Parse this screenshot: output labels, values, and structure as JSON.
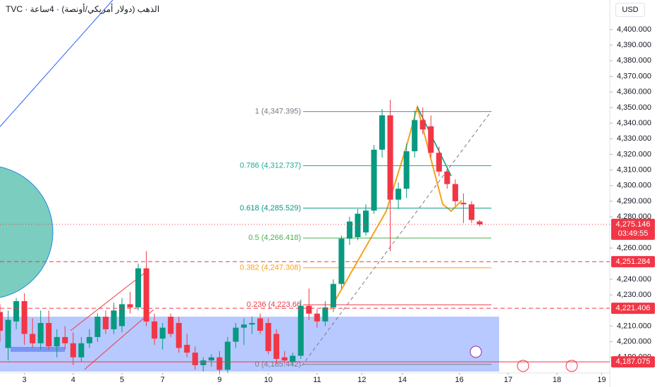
{
  "chart_data": {
    "type": "candlestick",
    "title": "TVC · الذهب (دولار أمريكي/أونصة) · 4ساعة",
    "currency": "USD",
    "up_color": "#089981",
    "down_color": "#f23645",
    "x": [
      0,
      1,
      2,
      3,
      4,
      5,
      6,
      7,
      8,
      9,
      10,
      11,
      12,
      13,
      14,
      15,
      16,
      17,
      18,
      19,
      20,
      21,
      22,
      23,
      24,
      25,
      26,
      27,
      28,
      29,
      30,
      31,
      32,
      33,
      34,
      35,
      36,
      37,
      38,
      39,
      40,
      41,
      42,
      43,
      44,
      45,
      46,
      47,
      48,
      49,
      50,
      51,
      52,
      53,
      54,
      55,
      56,
      57,
      58,
      59
    ],
    "open": [
      4219,
      4196,
      4213,
      4226,
      4205,
      4199,
      4212,
      4197,
      4203,
      4199,
      4190,
      4199,
      4203,
      4216,
      4208,
      4210,
      4224,
      4222,
      4247,
      4213,
      4202,
      4216,
      4212,
      4198,
      4193,
      4185,
      4188,
      4190,
      4182,
      4200,
      4209,
      4211,
      4215,
      4212,
      4205,
      4190,
      4187,
      4191,
      4223,
      4218,
      4213,
      4222,
      4237,
      4266,
      4267,
      4270,
      4284,
      4323,
      4345,
      4291,
      4298,
      4322,
      4342,
      4338,
      4321,
      4309,
      4301,
      4289,
      4288,
      4277
    ],
    "high": [
      4224,
      4220,
      4228,
      4231,
      4215,
      4220,
      4220,
      4208,
      4210,
      4206,
      4203,
      4208,
      4218,
      4220,
      4225,
      4228,
      4232,
      4250,
      4258,
      4218,
      4212,
      4218,
      4216,
      4205,
      4197,
      4190,
      4192,
      4194,
      4203,
      4212,
      4215,
      4216,
      4218,
      4215,
      4208,
      4194,
      4193,
      4227,
      4234,
      4221,
      4226,
      4240,
      4268,
      4280,
      4285,
      4288,
      4326,
      4349,
      4355,
      4302,
      4327,
      4348,
      4350,
      4345,
      4325,
      4312,
      4304,
      4295,
      4290,
      4278
    ],
    "low": [
      4200,
      4188,
      4208,
      4198,
      4196,
      4195,
      4195,
      4190,
      4195,
      4185,
      4187,
      4196,
      4200,
      4205,
      4205,
      4206,
      4218,
      4220,
      4210,
      4198,
      4195,
      4203,
      4193,
      4190,
      4182,
      4181,
      4184,
      4180,
      4180,
      4196,
      4198,
      4205,
      4205,
      4192,
      4186,
      4186,
      4185,
      4189,
      4214,
      4209,
      4210,
      4219,
      4234,
      4262,
      4265,
      4268,
      4282,
      4318,
      4258,
      4285,
      4292,
      4318,
      4333,
      4318,
      4306,
      4298,
      4287,
      4276,
      4276,
      4274
    ],
    "close": [
      4207,
      4214,
      4226,
      4205,
      4199,
      4212,
      4197,
      4203,
      4199,
      4190,
      4199,
      4203,
      4216,
      4208,
      4220,
      4224,
      4222,
      4247,
      4213,
      4202,
      4209,
      4205,
      4196,
      4193,
      4185,
      4188,
      4190,
      4182,
      4200,
      4209,
      4211,
      4212,
      4207,
      4194,
      4189,
      4188,
      4191,
      4223,
      4218,
      4213,
      4222,
      4237,
      4266,
      4277,
      4282,
      4284,
      4323,
      4345,
      4291,
      4298,
      4322,
      4342,
      4336,
      4321,
      4309,
      4301,
      4290,
      4288,
      4278,
      4275.146
    ],
    "xlim": [
      0,
      75
    ],
    "xticks": [
      {
        "value": 3,
        "label": "3"
      },
      {
        "value": 9,
        "label": "4"
      },
      {
        "value": 15,
        "label": "5"
      },
      {
        "value": 20,
        "label": "7"
      },
      {
        "value": 27,
        "label": "9"
      },
      {
        "value": 33,
        "label": "10"
      },
      {
        "value": 39,
        "label": "11"
      },
      {
        "value": 44.5,
        "label": "12"
      },
      {
        "value": 49.5,
        "label": "14"
      },
      {
        "value": 56.5,
        "label": "16"
      },
      {
        "value": 62.5,
        "label": "17"
      },
      {
        "value": 68.5,
        "label": "18"
      },
      {
        "value": 74,
        "label": "19"
      }
    ],
    "ylim": [
      4180,
      4418.9
    ],
    "yticks": [
      {
        "value": 4400,
        "label": "4,400.000"
      },
      {
        "value": 4390,
        "label": "4,390.000"
      },
      {
        "value": 4380,
        "label": "4,380.000"
      },
      {
        "value": 4370,
        "label": "4,370.000"
      },
      {
        "value": 4360,
        "label": "4,360.000"
      },
      {
        "value": 4350,
        "label": "4,350.000"
      },
      {
        "value": 4340,
        "label": "4,340.000"
      },
      {
        "value": 4330,
        "label": "4,330.000"
      },
      {
        "value": 4320,
        "label": "4,320.000"
      },
      {
        "value": 4310,
        "label": "4,310.000"
      },
      {
        "value": 4300,
        "label": "4,300.000"
      },
      {
        "value": 4290,
        "label": "4,290.000"
      },
      {
        "value": 4280,
        "label": "4,280.000"
      },
      {
        "value": 4260,
        "label": "4,260.000"
      },
      {
        "value": 4240,
        "label": "4,240.000"
      },
      {
        "value": 4230,
        "label": "4,230.000"
      },
      {
        "value": 4210,
        "label": "4,210.000"
      },
      {
        "value": 4200,
        "label": "4,200.000"
      },
      {
        "value": 4190,
        "label": "4,190.000"
      }
    ],
    "last_price": {
      "value": 4275.146,
      "label": "4,275.146",
      "countdown": "03:49:55"
    },
    "price_lines": [
      {
        "value": 4251.284,
        "label": "4,251.284"
      },
      {
        "value": 4221.406,
        "label": "4,221.406"
      },
      {
        "value": 4187.075,
        "label": "4,187.075"
      }
    ],
    "fib_levels": [
      {
        "value": 4347.395,
        "label": "1 (4,347.395)",
        "color": "#787b86"
      },
      {
        "value": 4312.737,
        "label": "0.786 (4,312.737)",
        "color": "#22ab94"
      },
      {
        "value": 4285.529,
        "label": "0.618 (4,285.529)",
        "color": "#089981"
      },
      {
        "value": 4266.418,
        "label": "0.5 (4,266.418)",
        "color": "#4caf50"
      },
      {
        "value": 4247.308,
        "label": "0.382 (4,247.308)",
        "color": "#f7a21b"
      },
      {
        "value": 4223.66,
        "label": "0.236 (4,223.66",
        "color": "#f23645"
      },
      {
        "value": 4185.442,
        "label": "0 (4,185.442)",
        "color": "#787b86"
      }
    ]
  }
}
